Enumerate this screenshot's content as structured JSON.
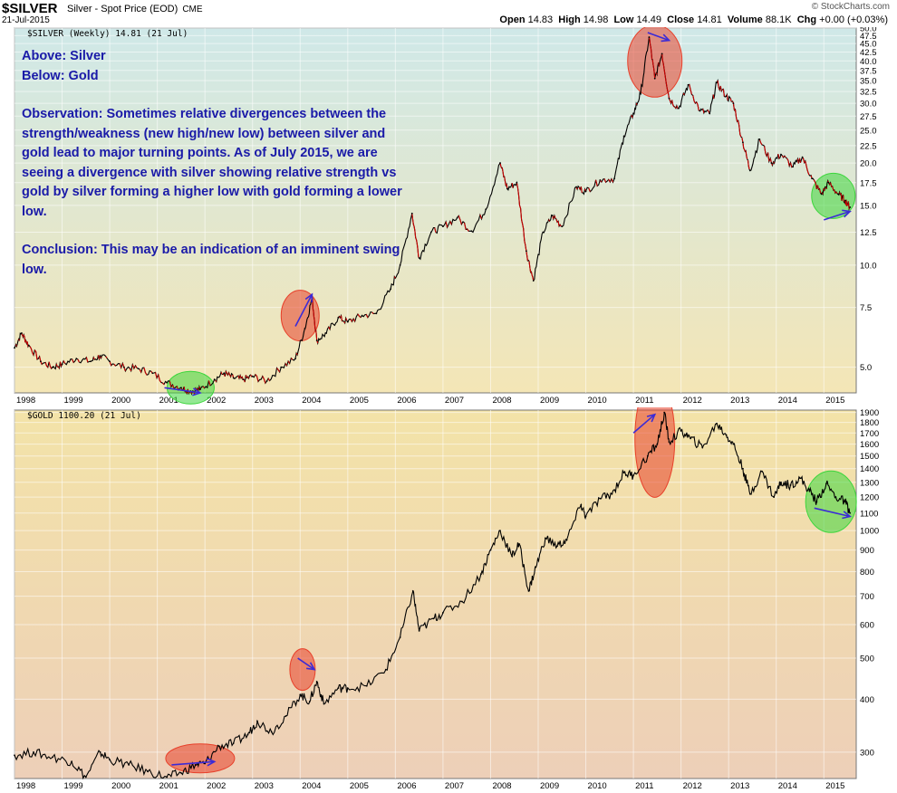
{
  "header": {
    "symbol": "$SILVER",
    "description": "Silver - Spot Price (EOD)",
    "exchange": "CME",
    "date": "21-Jul-2015",
    "logo": "© StockCharts.com",
    "open_label": "Open",
    "open": "14.83",
    "high_label": "High",
    "high": "14.98",
    "low_label": "Low",
    "low": "14.49",
    "close_label": "Close",
    "close": "14.81",
    "volume_label": "Volume",
    "volume": "88.1K",
    "chg_label": "Chg",
    "chg": "+0.00 (+0.03%)"
  },
  "annotation": {
    "line1": "Above: Silver",
    "line2": "Below: Gold",
    "observation": "Observation: Sometimes relative divergences between the strength/weakness (new high/new low) between silver and gold lead to major turning points. As of July 2015, we are seeing a divergence with silver showing relative strength vs gold by silver forming a higher low with gold forming a lower low.",
    "conclusion": "Conclusion: This may be an indication of an imminent swing low."
  },
  "colors": {
    "silver_bg_top": "#cfe8e8",
    "silver_bg_bottom": "#f4e6b6",
    "gold_bg_top": "#f3e3a8",
    "gold_bg_bottom": "#edcfb8",
    "price_line": "#000000",
    "down_segments": "#cc0000",
    "annotation_text": "#1a1aa8",
    "arrow": "#3b2bd6",
    "red_circle": "#e8402a",
    "green_circle": "#3cd63c"
  },
  "chart_data": [
    {
      "type": "line",
      "title": "$SILVER (Weekly) 14.81 (21 Jul)",
      "scale": "log",
      "ylim": [
        4.2,
        50.0
      ],
      "x_ticks": [
        "1998",
        "1999",
        "2000",
        "2001",
        "2002",
        "2003",
        "2004",
        "2005",
        "2006",
        "2007",
        "2008",
        "2009",
        "2010",
        "2011",
        "2012",
        "2013",
        "2014",
        "2015"
      ],
      "y_ticks": [
        5.0,
        7.5,
        10.0,
        12.5,
        15.0,
        17.5,
        20.0,
        22.5,
        25.0,
        27.5,
        30.0,
        32.5,
        35.0,
        37.5,
        40.0,
        42.5,
        45.0,
        47.5,
        50.0
      ],
      "series": [
        {
          "points": [
            [
              1998.0,
              5.7
            ],
            [
              1998.15,
              6.3
            ],
            [
              1998.3,
              5.8
            ],
            [
              1998.55,
              5.2
            ],
            [
              1998.8,
              5.0
            ],
            [
              1999.0,
              5.1
            ],
            [
              1999.3,
              5.3
            ],
            [
              1999.6,
              5.2
            ],
            [
              1999.8,
              5.4
            ],
            [
              2000.0,
              5.2
            ],
            [
              2000.3,
              5.0
            ],
            [
              2000.6,
              4.95
            ],
            [
              2000.9,
              4.8
            ],
            [
              2001.2,
              4.5
            ],
            [
              2001.5,
              4.35
            ],
            [
              2001.7,
              4.25
            ],
            [
              2001.9,
              4.3
            ],
            [
              2002.2,
              4.6
            ],
            [
              2002.4,
              4.8
            ],
            [
              2002.6,
              4.65
            ],
            [
              2002.8,
              4.6
            ],
            [
              2003.0,
              4.7
            ],
            [
              2003.3,
              4.55
            ],
            [
              2003.6,
              5.0
            ],
            [
              2003.9,
              5.3
            ],
            [
              2004.1,
              6.5
            ],
            [
              2004.25,
              8.0
            ],
            [
              2004.35,
              6.0
            ],
            [
              2004.55,
              6.3
            ],
            [
              2004.8,
              7.0
            ],
            [
              2005.0,
              6.8
            ],
            [
              2005.3,
              7.1
            ],
            [
              2005.6,
              7.2
            ],
            [
              2005.9,
              8.5
            ],
            [
              2006.1,
              10.0
            ],
            [
              2006.35,
              14.2
            ],
            [
              2006.5,
              10.5
            ],
            [
              2006.75,
              12.5
            ],
            [
              2007.0,
              13.0
            ],
            [
              2007.3,
              13.8
            ],
            [
              2007.6,
              12.6
            ],
            [
              2007.9,
              14.6
            ],
            [
              2008.2,
              20.0
            ],
            [
              2008.35,
              16.8
            ],
            [
              2008.55,
              17.5
            ],
            [
              2008.75,
              11.0
            ],
            [
              2008.9,
              9.0
            ],
            [
              2009.1,
              12.5
            ],
            [
              2009.3,
              14.0
            ],
            [
              2009.5,
              13.0
            ],
            [
              2009.8,
              17.0
            ],
            [
              2010.0,
              16.5
            ],
            [
              2010.3,
              17.8
            ],
            [
              2010.6,
              18.0
            ],
            [
              2010.8,
              24.0
            ],
            [
              2011.0,
              28.0
            ],
            [
              2011.15,
              32.0
            ],
            [
              2011.33,
              47.0
            ],
            [
              2011.45,
              35.5
            ],
            [
              2011.6,
              42.0
            ],
            [
              2011.75,
              31.0
            ],
            [
              2011.95,
              29.0
            ],
            [
              2012.15,
              34.0
            ],
            [
              2012.4,
              28.5
            ],
            [
              2012.6,
              28.0
            ],
            [
              2012.75,
              34.5
            ],
            [
              2012.95,
              31.5
            ],
            [
              2013.1,
              30.0
            ],
            [
              2013.3,
              23.0
            ],
            [
              2013.45,
              19.0
            ],
            [
              2013.65,
              23.5
            ],
            [
              2013.9,
              20.0
            ],
            [
              2014.1,
              21.2
            ],
            [
              2014.35,
              19.5
            ],
            [
              2014.55,
              20.8
            ],
            [
              2014.75,
              18.0
            ],
            [
              2014.95,
              16.2
            ],
            [
              2015.1,
              17.5
            ],
            [
              2015.3,
              16.2
            ],
            [
              2015.45,
              15.5
            ],
            [
              2015.55,
              14.81
            ]
          ]
        }
      ]
    },
    {
      "type": "line",
      "title": "$GOLD 1100.20 (21 Jul)",
      "scale": "log",
      "ylim": [
        260,
        1925
      ],
      "x_ticks": [
        "1998",
        "1999",
        "2000",
        "2001",
        "2002",
        "2003",
        "2004",
        "2005",
        "2006",
        "2007",
        "2008",
        "2009",
        "2010",
        "2011",
        "2012",
        "2013",
        "2014",
        "2015"
      ],
      "y_ticks": [
        300,
        400,
        500,
        600,
        700,
        800,
        900,
        1000,
        1100,
        1200,
        1300,
        1400,
        1500,
        1600,
        1700,
        1800,
        1900
      ],
      "series": [
        {
          "points": [
            [
              1998.0,
              295
            ],
            [
              1998.4,
              300
            ],
            [
              1998.8,
              292
            ],
            [
              1999.2,
              285
            ],
            [
              1999.5,
              262
            ],
            [
              1999.8,
              300
            ],
            [
              2000.0,
              288
            ],
            [
              2000.4,
              280
            ],
            [
              2000.8,
              270
            ],
            [
              2001.2,
              262
            ],
            [
              2001.5,
              268
            ],
            [
              2001.8,
              280
            ],
            [
              2002.0,
              282
            ],
            [
              2002.3,
              310
            ],
            [
              2002.6,
              315
            ],
            [
              2002.9,
              330
            ],
            [
              2003.1,
              355
            ],
            [
              2003.4,
              335
            ],
            [
              2003.7,
              365
            ],
            [
              2004.0,
              410
            ],
            [
              2004.2,
              395
            ],
            [
              2004.35,
              440
            ],
            [
              2004.5,
              390
            ],
            [
              2004.8,
              425
            ],
            [
              2005.0,
              425
            ],
            [
              2005.4,
              430
            ],
            [
              2005.8,
              470
            ],
            [
              2006.1,
              560
            ],
            [
              2006.37,
              720
            ],
            [
              2006.5,
              580
            ],
            [
              2006.8,
              620
            ],
            [
              2007.0,
              640
            ],
            [
              2007.4,
              680
            ],
            [
              2007.8,
              790
            ],
            [
              2008.0,
              900
            ],
            [
              2008.2,
              1000
            ],
            [
              2008.45,
              870
            ],
            [
              2008.6,
              930
            ],
            [
              2008.8,
              720
            ],
            [
              2008.95,
              820
            ],
            [
              2009.15,
              960
            ],
            [
              2009.4,
              920
            ],
            [
              2009.6,
              950
            ],
            [
              2009.9,
              1150
            ],
            [
              2010.0,
              1080
            ],
            [
              2010.3,
              1190
            ],
            [
              2010.55,
              1220
            ],
            [
              2010.8,
              1370
            ],
            [
              2011.0,
              1350
            ],
            [
              2011.3,
              1500
            ],
            [
              2011.5,
              1600
            ],
            [
              2011.65,
              1900
            ],
            [
              2011.75,
              1620
            ],
            [
              2012.0,
              1720
            ],
            [
              2012.2,
              1650
            ],
            [
              2012.45,
              1570
            ],
            [
              2012.75,
              1790
            ],
            [
              2012.95,
              1680
            ],
            [
              2013.1,
              1600
            ],
            [
              2013.3,
              1400
            ],
            [
              2013.45,
              1220
            ],
            [
              2013.7,
              1380
            ],
            [
              2013.95,
              1200
            ],
            [
              2014.1,
              1300
            ],
            [
              2014.3,
              1280
            ],
            [
              2014.5,
              1330
            ],
            [
              2014.7,
              1240
            ],
            [
              2014.85,
              1170
            ],
            [
              2015.05,
              1290
            ],
            [
              2015.25,
              1200
            ],
            [
              2015.45,
              1170
            ],
            [
              2015.55,
              1100
            ]
          ]
        }
      ]
    }
  ]
}
